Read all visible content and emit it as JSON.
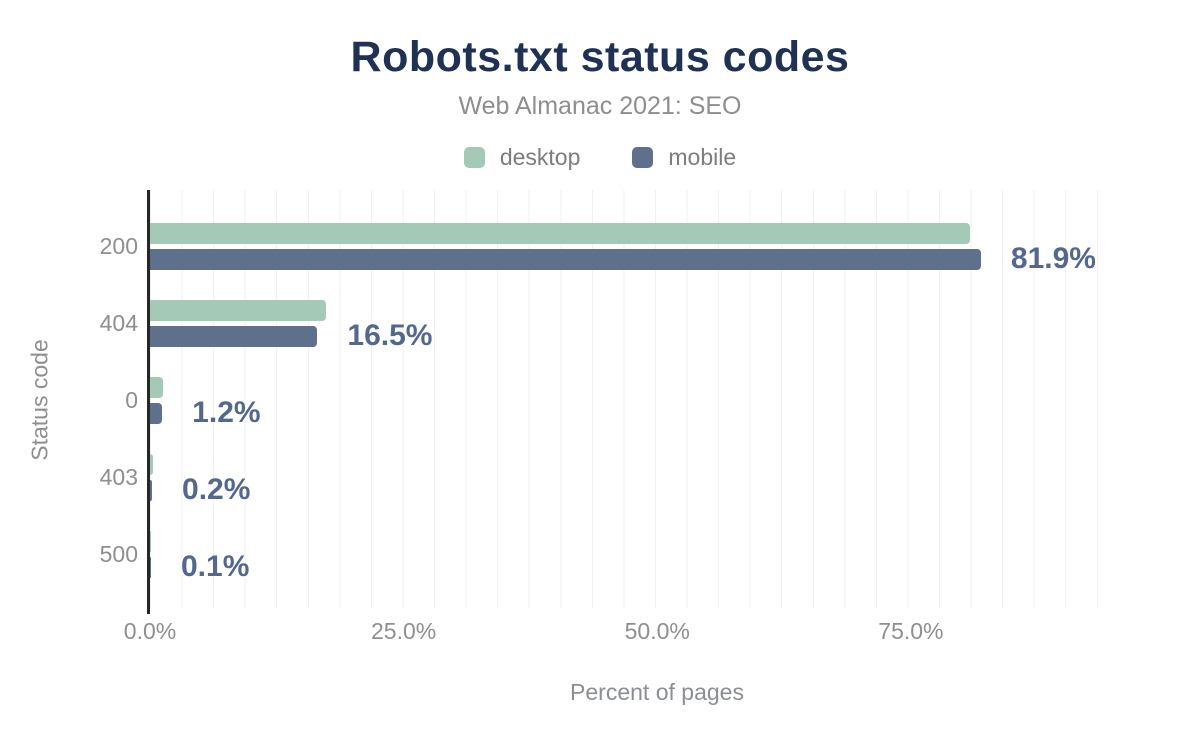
{
  "chart_data": {
    "type": "bar",
    "orientation": "horizontal",
    "title": "Robots.txt status codes",
    "subtitle": "Web Almanac 2021: SEO",
    "xlabel": "Percent of pages",
    "ylabel": "Status code",
    "categories": [
      "200",
      "404",
      "0",
      "403",
      "500"
    ],
    "series": [
      {
        "name": "desktop",
        "color": "#a4c9b6",
        "values": [
          80.8,
          17.3,
          1.3,
          0.3,
          0.1
        ]
      },
      {
        "name": "mobile",
        "color": "#5e708c",
        "values": [
          81.9,
          16.5,
          1.2,
          0.2,
          0.1
        ]
      }
    ],
    "value_labels": {
      "labeled_series": "mobile",
      "labels": [
        "81.9%",
        "16.5%",
        "1.2%",
        "0.2%",
        "0.1%"
      ]
    },
    "x_ticks": [
      {
        "value": 0,
        "label": "0.0%"
      },
      {
        "value": 25,
        "label": "25.0%"
      },
      {
        "value": 50,
        "label": "50.0%"
      },
      {
        "value": 75,
        "label": "75.0%"
      }
    ],
    "xlim": [
      0,
      96.4
    ],
    "grid": {
      "minor_step_percent": 3.125,
      "color": "#f1f1f1",
      "vertical": true
    },
    "legend_position": "top"
  },
  "colors": {
    "title_text": "#1f3254",
    "muted_text": "#8f8f8f",
    "legend_text": "#7d7d7d",
    "value_label_text": "#54688f",
    "axis_line": "#262626",
    "background": "#ffffff"
  }
}
